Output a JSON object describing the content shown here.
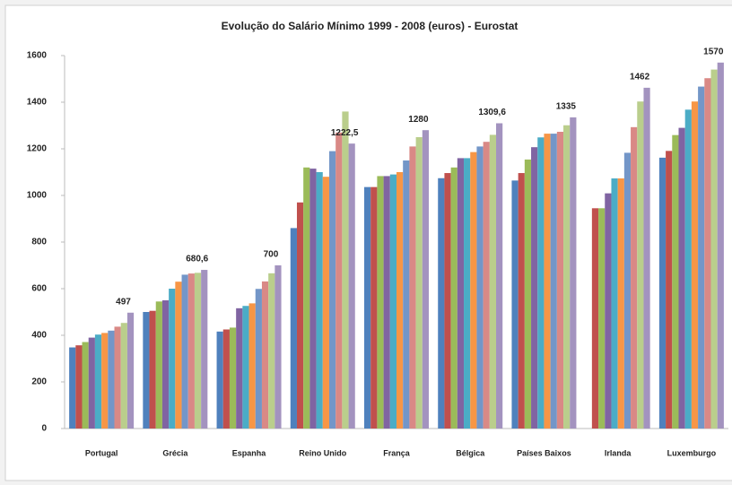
{
  "chart_data": {
    "type": "bar",
    "title": "Evolução do Salário Mínimo 1999 - 2008 (euros) - Eurostat",
    "categories": [
      "Portugal",
      "Grécia",
      "Espanha",
      "Reino Unido",
      "França",
      "Bélgica",
      "Países Baixos",
      "Irlanda",
      "Luxemburgo"
    ],
    "series": [
      {
        "color": "#4F81BD",
        "values": [
          348,
          500,
          416,
          860,
          1036,
          1074,
          1064,
          null,
          1162
        ]
      },
      {
        "color": "#C0504D",
        "values": [
          357,
          505,
          425,
          970,
          1036,
          1096,
          1096,
          945,
          1191
        ]
      },
      {
        "color": "#9BBB59",
        "values": [
          371,
          545,
          433,
          1120,
          1083,
          1120,
          1154,
          945,
          1259
        ]
      },
      {
        "color": "#8064A2",
        "values": [
          390,
          550,
          516,
          1115,
          1083,
          1160,
          1207,
          1009,
          1290
        ]
      },
      {
        "color": "#4BACC6",
        "values": [
          403,
          600,
          526,
          1100,
          1090,
          1160,
          1249,
          1073,
          1368
        ]
      },
      {
        "color": "#F79646",
        "values": [
          410,
          630,
          537,
          1080,
          1100,
          1186,
          1265,
          1073,
          1403
        ]
      },
      {
        "color": "#7396C8",
        "values": [
          420,
          660,
          599,
          1190,
          1150,
          1210,
          1265,
          1183,
          1467
        ]
      },
      {
        "color": "#D98986",
        "values": [
          437,
          665,
          631,
          1270,
          1210,
          1230,
          1273,
          1293,
          1503
        ]
      },
      {
        "color": "#BACE8C",
        "values": [
          453,
          668,
          666,
          1360,
          1250,
          1260,
          1301,
          1403,
          1540
        ]
      },
      {
        "color": "#A393BF",
        "values": [
          497,
          680.6,
          700,
          1222.5,
          1280,
          1309.6,
          1335,
          1462,
          1570
        ],
        "value_labels": [
          "497",
          "680,6",
          "700",
          "1222,5",
          "1280",
          "1309,6",
          "1335",
          "1462",
          "1570"
        ]
      }
    ],
    "ylim": [
      0,
      1600
    ],
    "yticks": [
      0,
      200,
      400,
      600,
      800,
      1000,
      1200,
      1400,
      1600
    ],
    "grid": false
  }
}
